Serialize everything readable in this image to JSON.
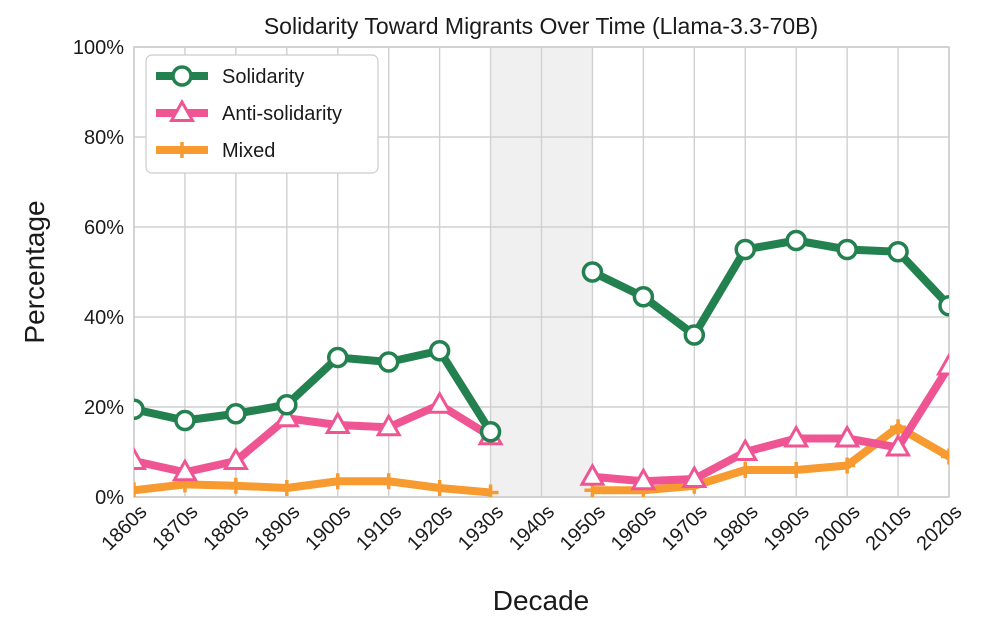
{
  "chart_data": {
    "type": "line",
    "title": "Solidarity Toward Migrants Over Time (Llama-3.3-70B)",
    "xlabel": "Decade",
    "ylabel": "Percentage",
    "categories": [
      "1860s",
      "1870s",
      "1880s",
      "1890s",
      "1900s",
      "1910s",
      "1920s",
      "1930s",
      "1940s",
      "1950s",
      "1960s",
      "1970s",
      "1980s",
      "1990s",
      "2000s",
      "2010s",
      "2020s"
    ],
    "ylim": [
      0,
      100
    ],
    "yticks": [
      0,
      20,
      40,
      60,
      80,
      100
    ],
    "ytick_labels": [
      "0%",
      "20%",
      "40%",
      "60%",
      "80%",
      "100%"
    ],
    "shaded_region": {
      "from": "1930s",
      "to": "1950s",
      "color": "#f0f0f0"
    },
    "grid": true,
    "legend_position": "top-left",
    "series": [
      {
        "name": "Solidarity",
        "color": "#23804f",
        "marker": "circle",
        "values": [
          19.5,
          17,
          18.5,
          20.5,
          31,
          30,
          32.5,
          14.5,
          null,
          50,
          44.5,
          36,
          55,
          57,
          55,
          54.5,
          42.5
        ]
      },
      {
        "name": "Anti-solidarity",
        "color": "#ef5593",
        "marker": "triangle",
        "values": [
          8,
          5.5,
          8,
          17.5,
          16,
          15.5,
          20.5,
          13.5,
          null,
          4.5,
          3.5,
          4,
          10,
          13,
          13,
          11,
          29
        ]
      },
      {
        "name": "Mixed",
        "color": "#f79a2f",
        "marker": "plus",
        "values": [
          1.5,
          2.8,
          2.5,
          2,
          3.5,
          3.5,
          2,
          1,
          null,
          1.5,
          1.5,
          2.5,
          6,
          6,
          7,
          15.5,
          9
        ]
      }
    ]
  }
}
